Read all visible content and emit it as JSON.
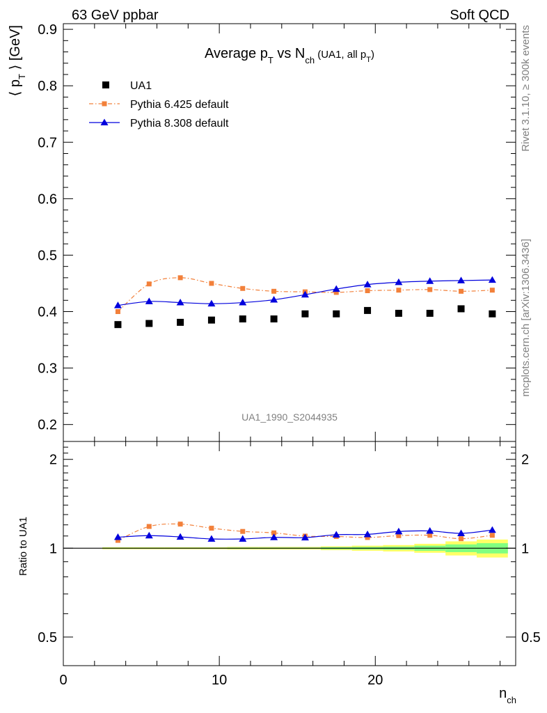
{
  "header": {
    "left": "63 GeV ppbar",
    "right": "Soft QCD"
  },
  "side_text": {
    "rivet": "Rivet 3.1.10, ≥ 300k events",
    "mcplots": "mcplots.cern.ch [arXiv:1306.3436]"
  },
  "colors": {
    "data": "#000000",
    "pythia6": "#f2803a",
    "pythia8": "#0000dd",
    "band_inner": "#80ff80",
    "band_outer": "#ffff66"
  },
  "chart_data": [
    {
      "type": "scatter",
      "panel": "main",
      "title": "Average p_T vs N_ch (UA1, all p_T)",
      "title_parts": {
        "a": "Average p",
        "a_sub": "T",
        "b": " vs N",
        "b_sub": "ch",
        "c": " (UA1, all p",
        "c_sub": "T",
        "d": ")"
      },
      "ylabel": "⟨ p_T ⟩ [GeV]",
      "ylabel_parts": {
        "pre": "⟨ p",
        "sub": "T",
        "post": " ⟩ [GeV]"
      },
      "watermark": "UA1_1990_S2044935",
      "xlim": [
        0,
        29
      ],
      "ylim": [
        0.17,
        0.91
      ],
      "yticks": [
        0.2,
        0.3,
        0.4,
        0.5,
        0.6,
        0.7,
        0.8,
        0.9
      ],
      "ytick_labels": [
        "0.2",
        "0.3",
        "0.4",
        "0.5",
        "0.6",
        "0.7",
        "0.8",
        "0.9"
      ],
      "legend_position": "top-left",
      "x": [
        3.5,
        5.5,
        7.5,
        9.5,
        11.5,
        13.5,
        15.5,
        17.5,
        19.5,
        21.5,
        23.5,
        25.5,
        27.5
      ],
      "series": [
        {
          "name": "UA1",
          "marker": "square",
          "line": "none",
          "values": [
            0.377,
            0.379,
            0.381,
            0.385,
            0.387,
            0.387,
            0.396,
            0.396,
            0.402,
            0.397,
            0.397,
            0.405,
            0.396
          ]
        },
        {
          "name": "Pythia 6.425 default",
          "marker": "square-small",
          "line": "dashdot",
          "values": [
            0.4,
            0.449,
            0.46,
            0.45,
            0.441,
            0.436,
            0.435,
            0.434,
            0.437,
            0.438,
            0.439,
            0.436,
            0.438
          ]
        },
        {
          "name": "Pythia 8.308 default",
          "marker": "triangle",
          "line": "solid",
          "values": [
            0.411,
            0.418,
            0.416,
            0.414,
            0.416,
            0.421,
            0.43,
            0.44,
            0.448,
            0.452,
            0.454,
            0.455,
            0.456
          ]
        }
      ]
    },
    {
      "type": "scatter",
      "panel": "ratio",
      "ylabel": "Ratio to UA1",
      "xlabel": "n_ch",
      "xlabel_parts": {
        "pre": "n",
        "sub": "ch"
      },
      "xlim": [
        0,
        29
      ],
      "ylim": [
        0.4,
        2.3
      ],
      "scale": "log",
      "xticks": [
        0,
        10,
        20
      ],
      "xtick_labels": [
        "0",
        "10",
        "20"
      ],
      "yticks": [
        0.5,
        1,
        2
      ],
      "ytick_labels": [
        "0.5",
        "1",
        "2"
      ],
      "x": [
        3.5,
        5.5,
        7.5,
        9.5,
        11.5,
        13.5,
        15.5,
        17.5,
        19.5,
        21.5,
        23.5,
        25.5,
        27.5
      ],
      "band_inner_halfwidth": [
        0.004,
        0.004,
        0.004,
        0.004,
        0.005,
        0.005,
        0.005,
        0.008,
        0.01,
        0.012,
        0.02,
        0.03,
        0.04
      ],
      "band_outer_halfwidth": [
        0.008,
        0.008,
        0.008,
        0.008,
        0.01,
        0.01,
        0.01,
        0.015,
        0.02,
        0.025,
        0.035,
        0.055,
        0.07
      ],
      "series": [
        {
          "name": "Pythia 6.425 default",
          "marker": "square-small",
          "line": "dashdot",
          "values": [
            1.063,
            1.185,
            1.207,
            1.169,
            1.14,
            1.127,
            1.099,
            1.096,
            1.087,
            1.103,
            1.106,
            1.077,
            1.106
          ]
        },
        {
          "name": "Pythia 8.308 default",
          "marker": "triangle",
          "line": "solid",
          "values": [
            1.09,
            1.103,
            1.092,
            1.075,
            1.075,
            1.088,
            1.086,
            1.111,
            1.114,
            1.139,
            1.144,
            1.123,
            1.152
          ]
        }
      ]
    }
  ]
}
